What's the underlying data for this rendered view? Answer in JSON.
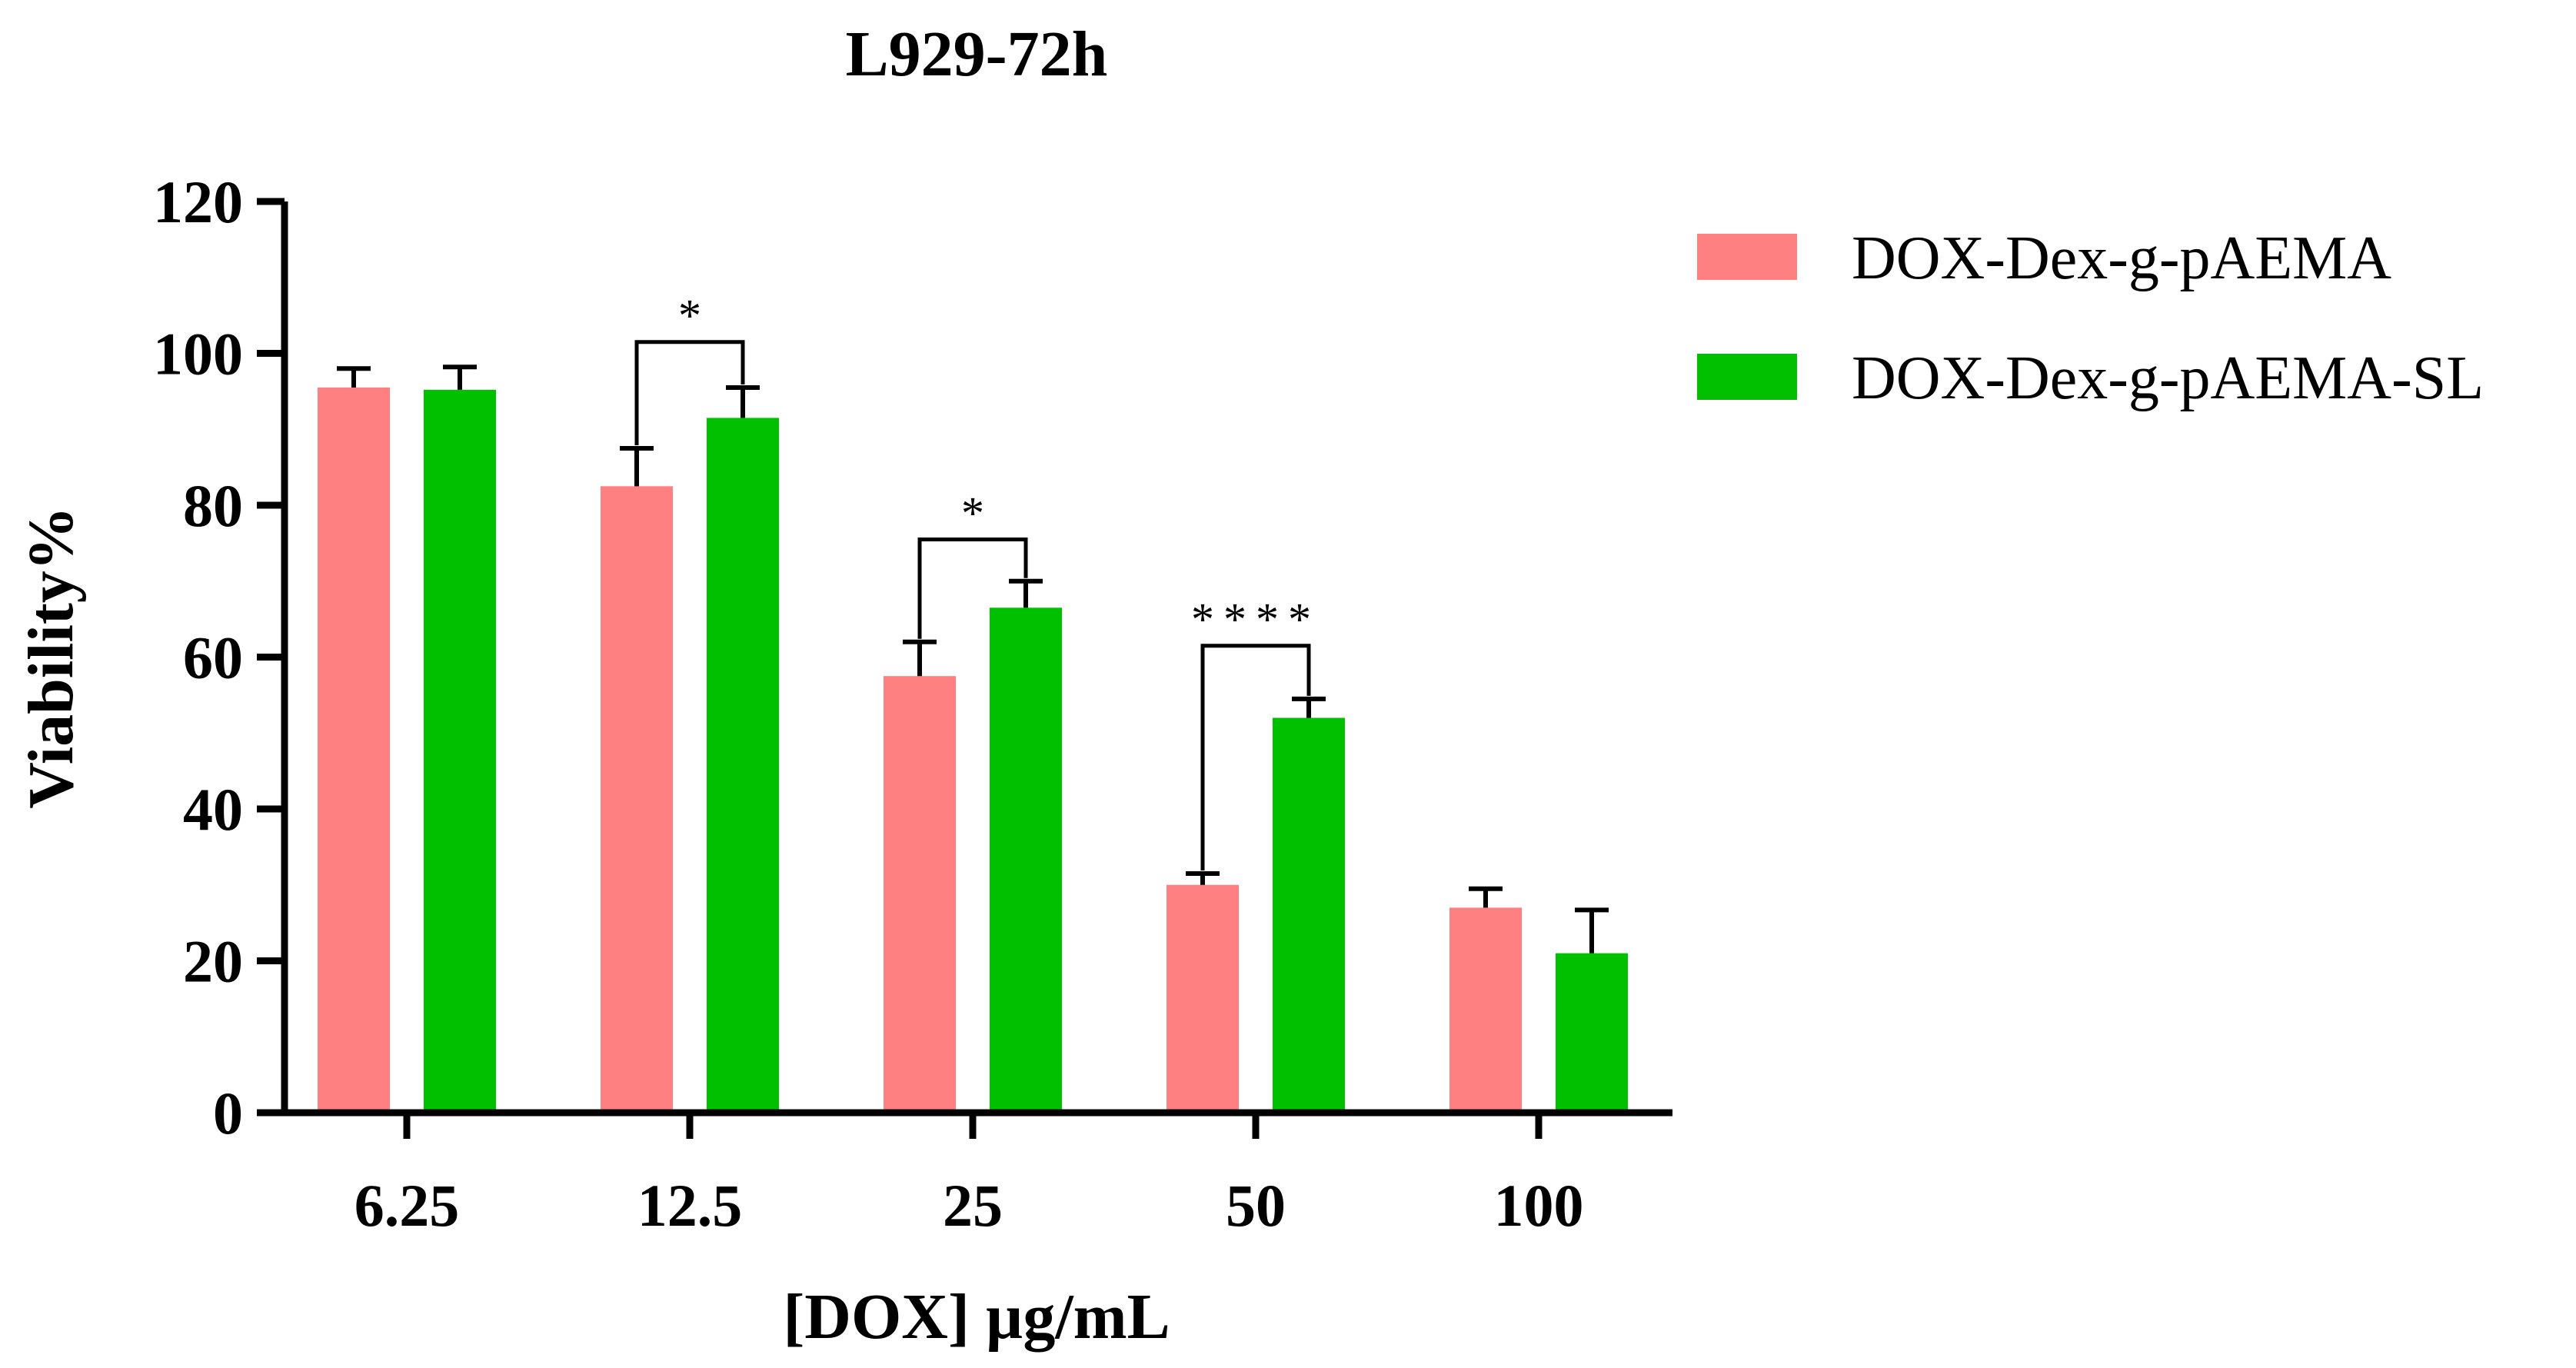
{
  "chart_data": {
    "type": "bar",
    "title": "L929-72h",
    "xlabel": "[DOX] µg/mL",
    "ylabel": "Viability%",
    "categories": [
      "6.25",
      "12.5",
      "25",
      "50",
      "100"
    ],
    "ylim": [
      0,
      120
    ],
    "yticks": [
      0,
      20,
      40,
      60,
      80,
      100,
      120
    ],
    "legend_position": "top-right",
    "series": [
      {
        "name": "DOX-Dex-g-pAEMA",
        "color": "#ff8080",
        "values": [
          95.5,
          82.5,
          57.5,
          30,
          27
        ],
        "errors": [
          2.5,
          5,
          4.5,
          1.5,
          2.5
        ]
      },
      {
        "name": "DOX-Dex-g-pAEMA-SL",
        "color": "#00c000",
        "values": [
          95.2,
          91.5,
          66.5,
          52,
          21
        ],
        "errors": [
          3,
          4,
          3.5,
          2.5,
          5.7
        ]
      }
    ],
    "annotations": [
      {
        "category_index": 1,
        "label": "*",
        "top": 101.5
      },
      {
        "category_index": 2,
        "label": "*",
        "top": 75.5
      },
      {
        "category_index": 3,
        "label": "****",
        "top": 61.5
      }
    ]
  }
}
